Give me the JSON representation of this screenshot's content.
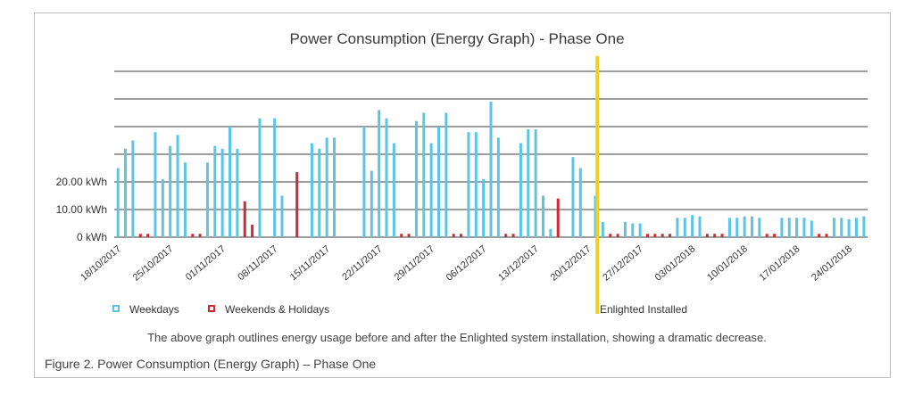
{
  "chart_data": {
    "type": "bar",
    "title": "Power Consumption (Energy Graph) - Phase One",
    "xlabel": "",
    "ylabel": "",
    "ylim": [
      0,
      60
    ],
    "y_ticks": [
      {
        "value": 0,
        "label": "0 kWh"
      },
      {
        "value": 10,
        "label": "10.00 kWh"
      },
      {
        "value": 20,
        "label": "20.00 kWh"
      }
    ],
    "gridlines_at": [
      0,
      10,
      20,
      30,
      40,
      50,
      60
    ],
    "x_tick_labels": [
      "18/10/2017",
      "25/10/2017",
      "01/11/2017",
      "08/11/2017",
      "15/11/2017",
      "22/11/2017",
      "29/11/2017",
      "06/12/2017",
      "13/12/2017",
      "20/12/2017",
      "27/12/2017",
      "03/01/2018",
      "10/01/2018",
      "17/01/2018",
      "24/01/2018"
    ],
    "day_count": 101,
    "grid": true,
    "legend_position": "bottom",
    "series": [
      {
        "name": "Weekdays",
        "color": "#5bc5e6",
        "points": [
          [
            0,
            25
          ],
          [
            1,
            32
          ],
          [
            2,
            35
          ],
          [
            5,
            38
          ],
          [
            6,
            21
          ],
          [
            7,
            33
          ],
          [
            8,
            37
          ],
          [
            9,
            27
          ],
          [
            12,
            27
          ],
          [
            13,
            33
          ],
          [
            14,
            32
          ],
          [
            15,
            40
          ],
          [
            16,
            32
          ],
          [
            19,
            43
          ],
          [
            21,
            43
          ],
          [
            22,
            15
          ],
          [
            26,
            34
          ],
          [
            27,
            32
          ],
          [
            28,
            36
          ],
          [
            29,
            36
          ],
          [
            33,
            40
          ],
          [
            34,
            24
          ],
          [
            35,
            46
          ],
          [
            36,
            43
          ],
          [
            37,
            34
          ],
          [
            40,
            42
          ],
          [
            41,
            45
          ],
          [
            42,
            34
          ],
          [
            43,
            40
          ],
          [
            44,
            45
          ],
          [
            47,
            38
          ],
          [
            48,
            38
          ],
          [
            49,
            21
          ],
          [
            50,
            49
          ],
          [
            51,
            36
          ],
          [
            54,
            34
          ],
          [
            55,
            39
          ],
          [
            56,
            39
          ],
          [
            57,
            15
          ],
          [
            58,
            3
          ],
          [
            61,
            29
          ],
          [
            62,
            25
          ],
          [
            64,
            15
          ],
          [
            65,
            5.5
          ],
          [
            68,
            5.5
          ],
          [
            69,
            5
          ],
          [
            70,
            5
          ],
          [
            75,
            7
          ],
          [
            76,
            7
          ],
          [
            77,
            8
          ],
          [
            78,
            7.5
          ],
          [
            82,
            7
          ],
          [
            83,
            7
          ],
          [
            84,
            7.5
          ],
          [
            85,
            7.5
          ],
          [
            86,
            7
          ],
          [
            89,
            7
          ],
          [
            90,
            7
          ],
          [
            91,
            7
          ],
          [
            92,
            7
          ],
          [
            93,
            6
          ],
          [
            96,
            7
          ],
          [
            97,
            7
          ],
          [
            98,
            6.5
          ],
          [
            99,
            7
          ],
          [
            100,
            7.5
          ]
        ]
      },
      {
        "name": "Weekends & Holidays",
        "color": "#cc2b34",
        "points": [
          [
            3,
            1.2
          ],
          [
            4,
            1.2
          ],
          [
            10,
            1.2
          ],
          [
            11,
            1.2
          ],
          [
            17,
            13
          ],
          [
            18,
            4.5
          ],
          [
            24,
            23.5
          ],
          [
            38,
            1.2
          ],
          [
            39,
            1.2
          ],
          [
            45,
            1.2
          ],
          [
            46,
            1.2
          ],
          [
            52,
            1.2
          ],
          [
            53,
            1.2
          ],
          [
            59,
            14
          ],
          [
            66,
            1.2
          ],
          [
            67,
            1.2
          ],
          [
            71,
            1.2
          ],
          [
            72,
            1.2
          ],
          [
            73,
            1.2
          ],
          [
            74,
            1.2
          ],
          [
            79,
            1.2
          ],
          [
            80,
            1.2
          ],
          [
            81,
            1.2
          ],
          [
            87,
            1.2
          ],
          [
            88,
            1.2
          ],
          [
            94,
            1.2
          ],
          [
            95,
            1.2
          ]
        ]
      }
    ],
    "annotation": {
      "label": "Enlighted Installed",
      "at_day": 65,
      "color": "#f2cf1e"
    }
  },
  "legend": {
    "weekdays_label": "Weekdays",
    "weekends_label": "Weekends & Holidays",
    "installed_label": "Enlighted Installed"
  },
  "caption": "The above graph outlines energy usage before and after the Enlighted system installation, showing a dramatic decrease.",
  "figure_label": "Figure 2. Power Consumption (Energy Graph) – Phase One"
}
